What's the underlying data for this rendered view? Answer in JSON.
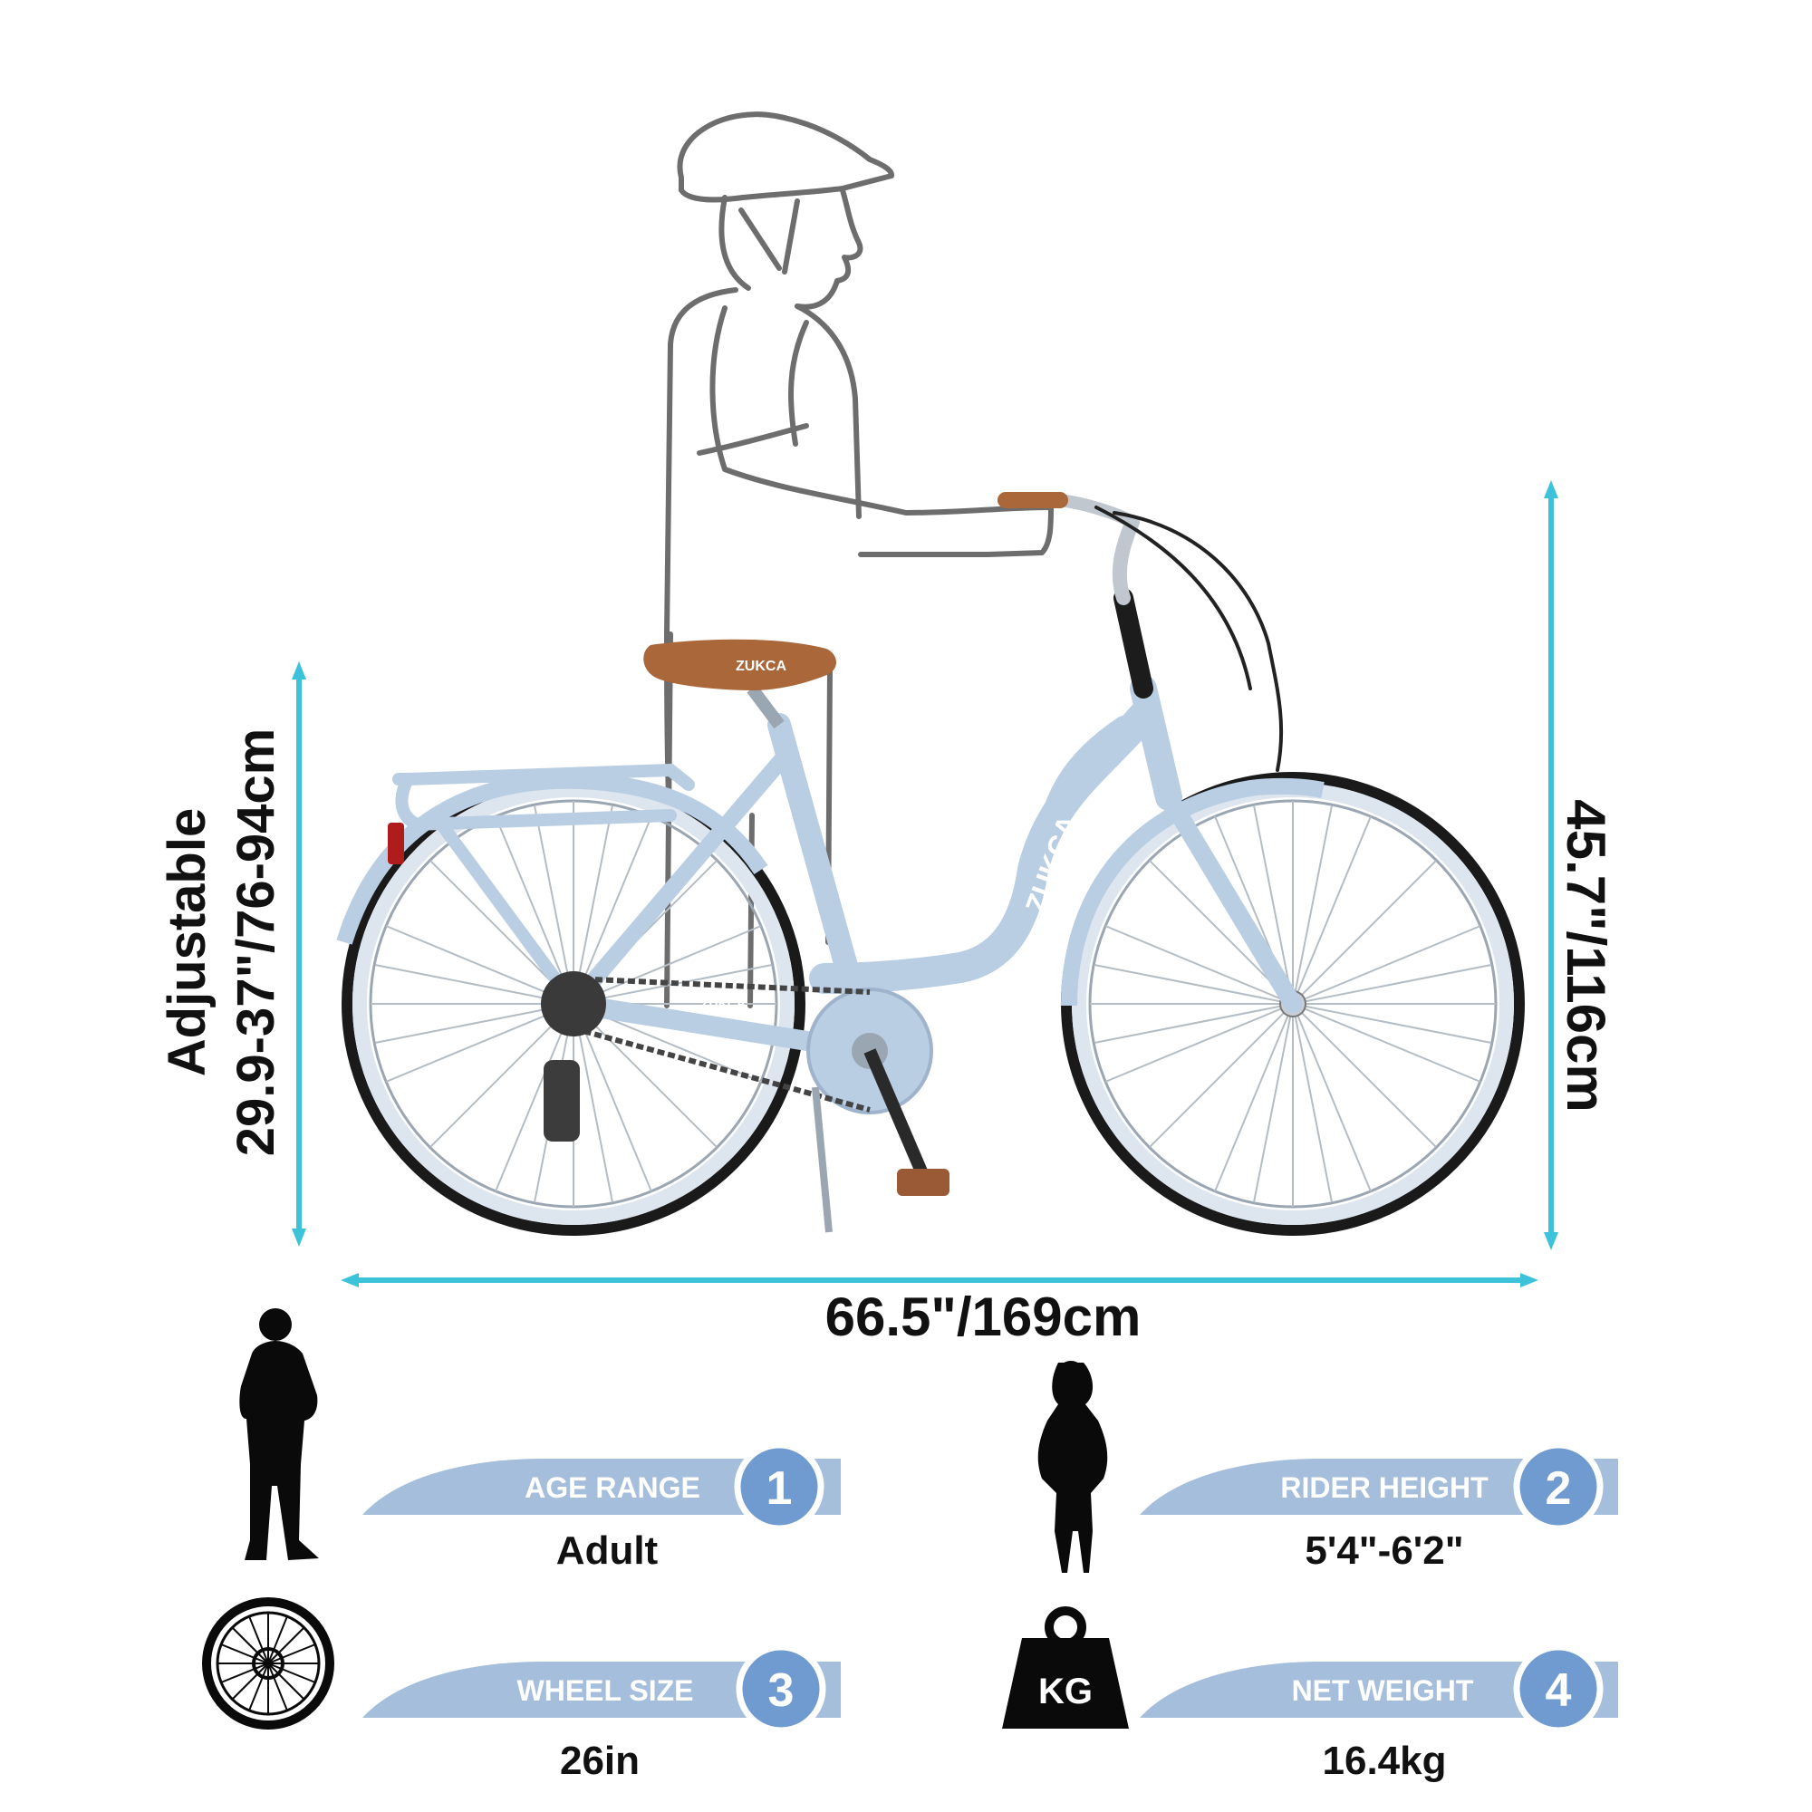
{
  "dimensions": {
    "seat_height_line1": "Adjustable",
    "seat_height_line2": "29.9-37\"/76-94cm",
    "overall_height": "45.7\"/116cm",
    "overall_length": "66.5\"/169cm"
  },
  "brand": {
    "saddle_text": "ZUKCA",
    "frame_text": "ZUKCA",
    "chainstay_text": "ZUKCA"
  },
  "specs": [
    {
      "number": "1",
      "label": "AGE RANGE",
      "value": "Adult",
      "icon": "man-silhouette-icon"
    },
    {
      "number": "2",
      "label": "RIDER HEIGHT",
      "value": "5'4\"-6'2\"",
      "icon": "woman-silhouette-icon"
    },
    {
      "number": "3",
      "label": "WHEEL SIZE",
      "value": "26in",
      "icon": "wheel-icon"
    },
    {
      "number": "4",
      "label": "NET WEIGHT",
      "value": "16.4kg",
      "icon": "weight-icon"
    }
  ],
  "weight_icon_text": "KG",
  "colors": {
    "dimension_arrow": "#3cc3da",
    "spec_band": "#a4bedc",
    "spec_badge": "#6f9bd1",
    "frame": "#b9cde3",
    "saddle": "#a9673a"
  }
}
